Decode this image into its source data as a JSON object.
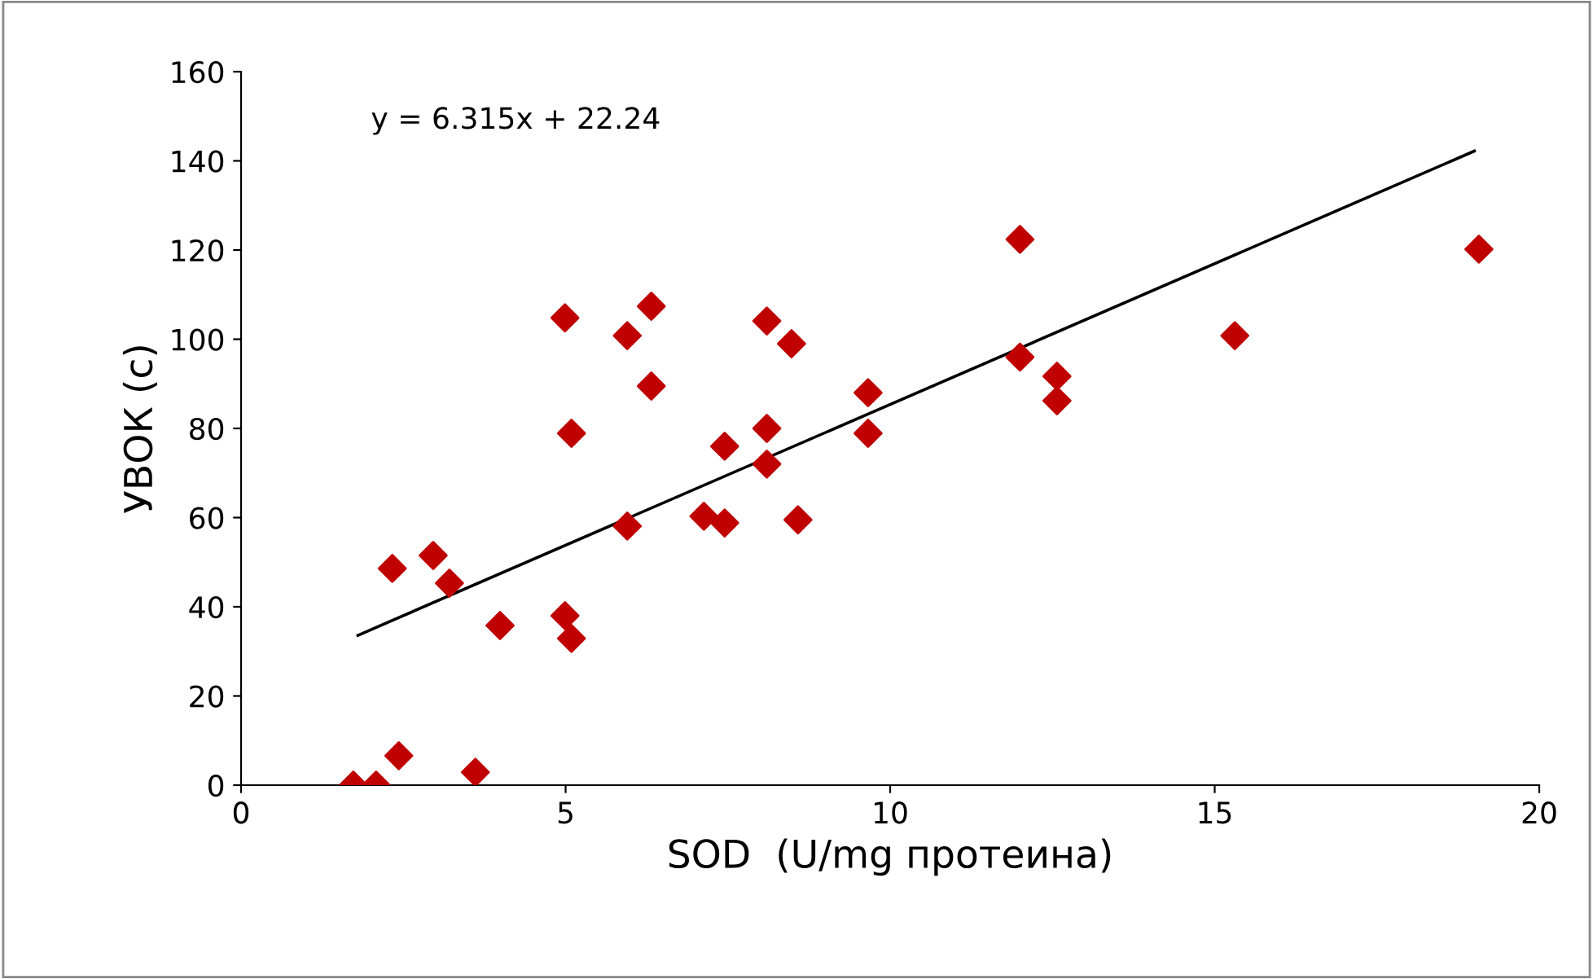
{
  "chart_data": {
    "type": "scatter",
    "xlabel": "SOD  (U/mg протеина)",
    "ylabel": "УВОК (с)",
    "annotations": [
      "y = 6.315x + 22.24"
    ],
    "xlim": [
      0,
      20
    ],
    "xticks": [
      0,
      5,
      10,
      15,
      20
    ],
    "ylim": [
      0,
      160
    ],
    "yticks": [
      0,
      20,
      40,
      60,
      80,
      100,
      120,
      140,
      160
    ],
    "grid": false,
    "marker": "diamond",
    "series": [
      {
        "color": "#c00000",
        "x": [
          1.73,
          2.08,
          2.33,
          2.43,
          2.96,
          3.21,
          3.61,
          3.99,
          4.99,
          4.99,
          5.09,
          5.09,
          5.95,
          5.95,
          6.32,
          6.32,
          7.13,
          7.45,
          7.45,
          8.1,
          8.1,
          8.1,
          8.48,
          8.58,
          9.66,
          9.66,
          12.0,
          12.0,
          12.57,
          12.57,
          15.31,
          19.07
        ],
        "values": [
          0,
          0,
          48.6,
          6.6,
          51.5,
          45.3,
          2.9,
          35.8,
          104.8,
          38,
          32.9,
          78.9,
          100.8,
          58.1,
          107.4,
          89.5,
          60.3,
          58.8,
          76,
          104.1,
          80,
          72,
          99,
          59.5,
          88,
          78.9,
          122.4,
          96,
          91.7,
          86.2,
          100.8,
          120.2
        ]
      },
      {
        "type": "line",
        "color": "#000000",
        "x": [
          1.8,
          19.0
        ],
        "values": [
          33.6,
          142.2
        ],
        "marker": "none",
        "line_style": "solid"
      }
    ]
  }
}
